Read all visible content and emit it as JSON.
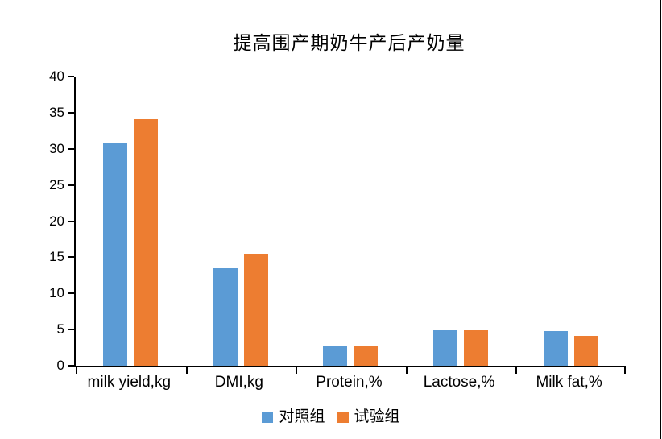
{
  "chart_data": {
    "type": "bar",
    "title": "提高围产期奶牛产后产奶量",
    "categories": [
      "milk yield,kg",
      "DMI,kg",
      "Protein,%",
      "Lactose,%",
      "Milk fat,%"
    ],
    "series": [
      {
        "name": "对照组",
        "color": "#5B9BD5",
        "values": [
          30.8,
          13.5,
          2.7,
          4.9,
          4.8
        ]
      },
      {
        "name": "试验组",
        "color": "#ED7D31",
        "values": [
          34.1,
          15.5,
          2.8,
          4.9,
          4.1
        ]
      }
    ],
    "xlabel": "",
    "ylabel": "",
    "ylim": [
      0,
      40
    ],
    "yticks": [
      0,
      5,
      10,
      15,
      20,
      25,
      30,
      35,
      40
    ],
    "grid": false,
    "legend_position": "bottom",
    "axis_color": "#000000",
    "background_color": "#ffffff",
    "page_right_border_color": "#000000"
  }
}
